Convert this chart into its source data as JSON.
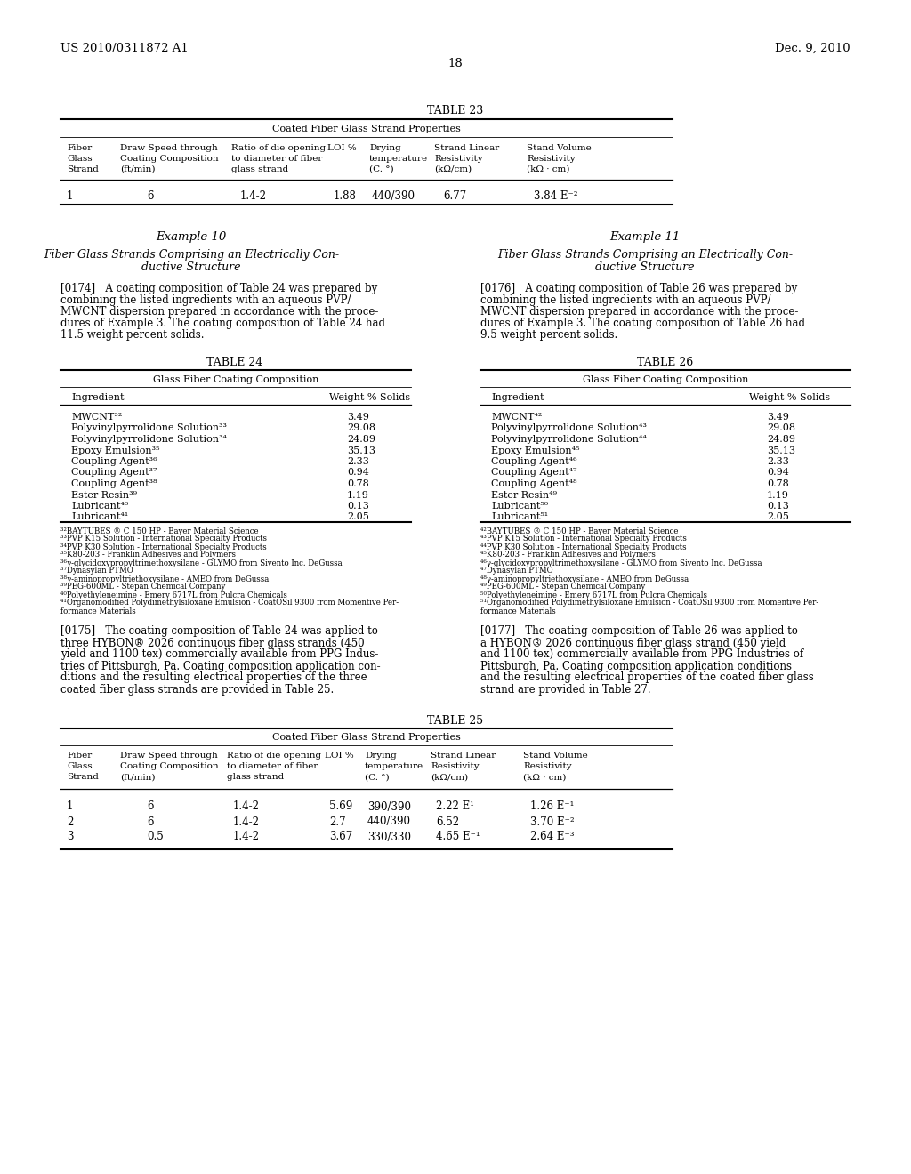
{
  "page_num": "18",
  "patent_num": "US 2010/0311872 A1",
  "patent_date": "Dec. 9, 2010",
  "bg_color": "#ffffff",
  "table23_title": "TABLE 23",
  "table23_subtitle": "Coated Fiber Glass Strand Properties",
  "table23_row": [
    "1",
    "6",
    "1.4-2",
    "1.88",
    "440/390",
    "6.77",
    "3.84 E⁻²"
  ],
  "example10_title": "Example 10",
  "example11_title": "Example 11",
  "table24_title": "TABLE 24",
  "table24_subtitle": "Glass Fiber Coating Composition",
  "table24_rows": [
    [
      "MWCNT³²",
      "3.49"
    ],
    [
      "Polyvinylpyrrolidone Solution³³",
      "29.08"
    ],
    [
      "Polyvinylpyrrolidone Solution³⁴",
      "24.89"
    ],
    [
      "Epoxy Emulsion³⁵",
      "35.13"
    ],
    [
      "Coupling Agent³⁶",
      "2.33"
    ],
    [
      "Coupling Agent³⁷",
      "0.94"
    ],
    [
      "Coupling Agent³⁸",
      "0.78"
    ],
    [
      "Ester Resin³⁹",
      "1.19"
    ],
    [
      "Lubricant⁴⁰",
      "0.13"
    ],
    [
      "Lubricant⁴¹",
      "2.05"
    ]
  ],
  "table26_title": "TABLE 26",
  "table26_subtitle": "Glass Fiber Coating Composition",
  "table26_rows": [
    [
      "MWCNT⁴²",
      "3.49"
    ],
    [
      "Polyvinylpyrrolidone Solution⁴³",
      "29.08"
    ],
    [
      "Polyvinylpyrrolidone Solution⁴⁴",
      "24.89"
    ],
    [
      "Epoxy Emulsion⁴⁵",
      "35.13"
    ],
    [
      "Coupling Agent⁴⁶",
      "2.33"
    ],
    [
      "Coupling Agent⁴⁷",
      "0.94"
    ],
    [
      "Coupling Agent⁴⁸",
      "0.78"
    ],
    [
      "Ester Resin⁴⁹",
      "1.19"
    ],
    [
      "Lubricant⁵⁰",
      "0.13"
    ],
    [
      "Lubricant⁵¹",
      "2.05"
    ]
  ],
  "table25_title": "TABLE 25",
  "table25_subtitle": "Coated Fiber Glass Strand Properties",
  "table25_rows": [
    [
      "1",
      "6",
      "1.4-2",
      "5.69",
      "390/390",
      "2.22 E¹",
      "1.26 E⁻¹"
    ],
    [
      "2",
      "6",
      "1.4-2",
      "2.7",
      "440/390",
      "6.52",
      "3.70 E⁻²"
    ],
    [
      "3",
      "0.5",
      "1.4-2",
      "3.67",
      "330/330",
      "4.65 E⁻¹",
      "2.64 E⁻³"
    ]
  ]
}
